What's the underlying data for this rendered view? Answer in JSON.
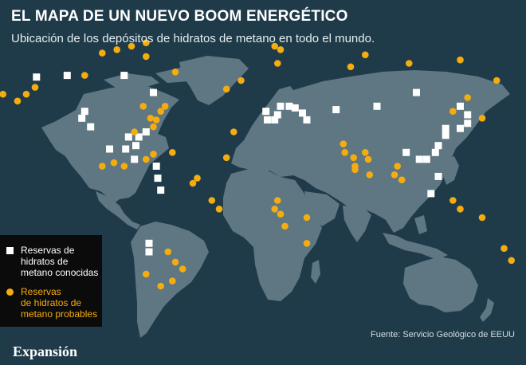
{
  "title": "EL MAPA DE UN NUEVO BOOM ENERGÉTICO",
  "subtitle": "Ubicación de los depósitos de hidratos de metano en todo el mundo.",
  "legend": {
    "known": "Reservas de\nhidratos de\nmetano conocidas",
    "probable": "Reservas\nde hidratos de\nmetano probables"
  },
  "source": "Fuente: Servicio Geológico de EEUU",
  "brand": "Expansión",
  "colors": {
    "ocean": "#1f3b4a",
    "land": "#5e7782",
    "known": "#ffffff",
    "probable": "#f5ac0f",
    "legend_bg": "#0b0b0b"
  },
  "map": {
    "known_sites": [
      [
        -155,
        62
      ],
      [
        -134,
        63
      ],
      [
        -95,
        63
      ],
      [
        -75,
        53
      ],
      [
        -122,
        42
      ],
      [
        -124,
        38
      ],
      [
        -118,
        33
      ],
      [
        -92,
        27
      ],
      [
        -85,
        27
      ],
      [
        -87,
        22
      ],
      [
        -94,
        20
      ],
      [
        -105,
        20
      ],
      [
        -80,
        30
      ],
      [
        -73,
        10
      ],
      [
        -72,
        3
      ],
      [
        -70,
        -4
      ],
      [
        -78,
        -35
      ],
      [
        -78,
        -40
      ],
      [
        -88,
        14
      ],
      [
        2,
        42
      ],
      [
        3,
        37
      ],
      [
        8,
        37
      ],
      [
        10,
        40
      ],
      [
        12,
        45
      ],
      [
        18,
        45
      ],
      [
        22,
        44
      ],
      [
        27,
        41
      ],
      [
        30,
        37
      ],
      [
        50,
        43
      ],
      [
        78,
        45
      ],
      [
        105,
        53
      ],
      [
        135,
        45
      ],
      [
        140,
        40
      ],
      [
        140,
        35
      ],
      [
        135,
        32
      ],
      [
        125,
        32
      ],
      [
        125,
        28
      ],
      [
        120,
        22
      ],
      [
        118,
        18
      ],
      [
        112,
        14
      ],
      [
        107,
        14
      ],
      [
        98,
        18
      ],
      [
        115,
        -6
      ],
      [
        120,
        4
      ]
    ],
    "probable_sites": [
      [
        -178,
        52
      ],
      [
        -168,
        48
      ],
      [
        -162,
        52
      ],
      [
        -156,
        56
      ],
      [
        -122,
        63
      ],
      [
        -110,
        76
      ],
      [
        -100,
        78
      ],
      [
        -90,
        80
      ],
      [
        -80,
        82
      ],
      [
        -80,
        74
      ],
      [
        -60,
        65
      ],
      [
        -82,
        45
      ],
      [
        -77,
        38
      ],
      [
        -73,
        37
      ],
      [
        -75,
        33
      ],
      [
        -70,
        42
      ],
      [
        -67,
        45
      ],
      [
        -88,
        30
      ],
      [
        -102,
        12
      ],
      [
        -95,
        10
      ],
      [
        -110,
        10
      ],
      [
        -80,
        14
      ],
      [
        -75,
        17
      ],
      [
        -62,
        18
      ],
      [
        -48,
        0
      ],
      [
        -45,
        3
      ],
      [
        -35,
        -10
      ],
      [
        -30,
        -15
      ],
      [
        -65,
        -40
      ],
      [
        -60,
        -46
      ],
      [
        -55,
        -50
      ],
      [
        -62,
        -57
      ],
      [
        -70,
        -60
      ],
      [
        -80,
        -53
      ],
      [
        -20,
        30
      ],
      [
        -25,
        15
      ],
      [
        -25,
        55
      ],
      [
        -15,
        60
      ],
      [
        10,
        70
      ],
      [
        8,
        80
      ],
      [
        12,
        78
      ],
      [
        60,
        68
      ],
      [
        70,
        75
      ],
      [
        100,
        70
      ],
      [
        135,
        72
      ],
      [
        160,
        60
      ],
      [
        130,
        42
      ],
      [
        150,
        38
      ],
      [
        140,
        50
      ],
      [
        55,
        23
      ],
      [
        56,
        18
      ],
      [
        62,
        15
      ],
      [
        63,
        10
      ],
      [
        70,
        18
      ],
      [
        72,
        14
      ],
      [
        63,
        8
      ],
      [
        73,
        5
      ],
      [
        90,
        5
      ],
      [
        92,
        10
      ],
      [
        95,
        2
      ],
      [
        30,
        -20
      ],
      [
        10,
        -10
      ],
      [
        8,
        -15
      ],
      [
        12,
        -18
      ],
      [
        15,
        -25
      ],
      [
        30,
        -35
      ],
      [
        130,
        -10
      ],
      [
        135,
        -15
      ],
      [
        150,
        -20
      ],
      [
        165,
        -38
      ],
      [
        170,
        -45
      ]
    ]
  }
}
